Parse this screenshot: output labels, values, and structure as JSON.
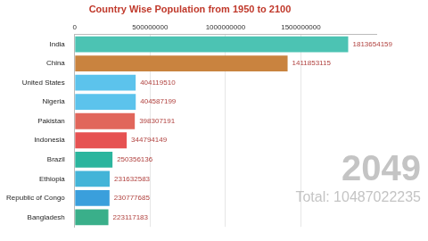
{
  "chart_data": {
    "type": "bar",
    "title": "Country Wise Population from 1950 to 2100",
    "orientation": "horizontal",
    "categories": [
      "India",
      "China",
      "United States",
      "Nigeria",
      "Pakistan",
      "Indonesia",
      "Brazil",
      "Ethiopia",
      "Republic of Congo",
      "Bangladesh"
    ],
    "values": [
      1813654159,
      1411853115,
      404119510,
      404587199,
      398307191,
      344794149,
      250356136,
      231632583,
      230777685,
      223117183
    ],
    "colors": [
      "#4cc3b3",
      "#c9833f",
      "#5cc3ec",
      "#5cc3ec",
      "#e1665b",
      "#e65252",
      "#2bb59e",
      "#43b4d8",
      "#3a9fdc",
      "#3aaf8a"
    ],
    "xlim": [
      0,
      2000000000
    ],
    "xticks": [
      0,
      500000000,
      1000000000,
      1500000000
    ],
    "grid": true,
    "data_labels": true,
    "annotations": [
      "2049",
      "Total: 10487022235"
    ]
  }
}
